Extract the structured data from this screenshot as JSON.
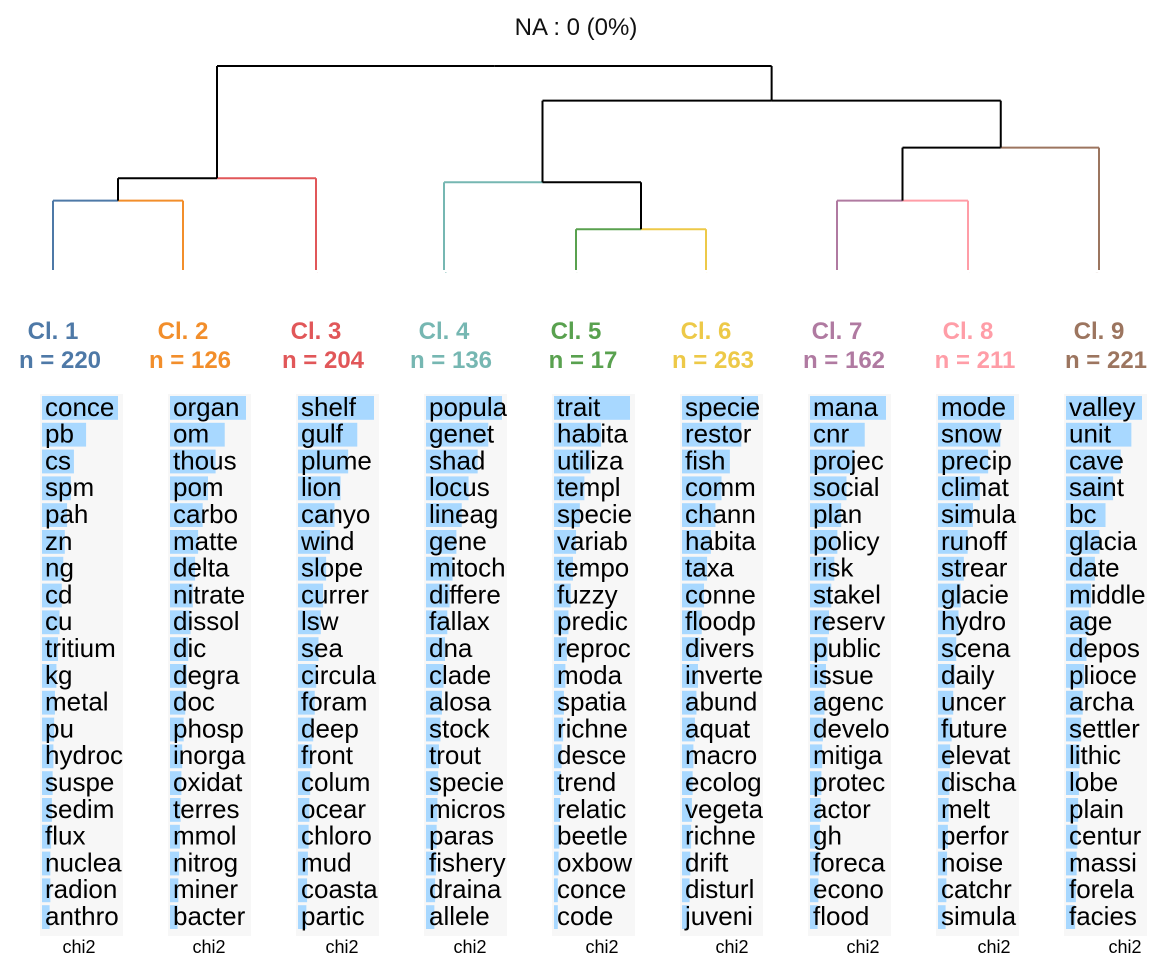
{
  "chart_data": {
    "type": "dendrogram",
    "title": "NA : 0 (0%)",
    "measure_label": "chi2",
    "branch_color": "#000000",
    "bar_color": "#a8d8ff",
    "panel_background": "#f7f7f7",
    "clusters": [
      {
        "label": "Cl. 1",
        "count_label": "n = 220",
        "leaf_label": "1",
        "color": "#4e79a7",
        "terms": [
          "concentration",
          "pb",
          "cs",
          "spm",
          "pah",
          "zn",
          "ng",
          "cd",
          "cu",
          "tritium",
          "kg",
          "metal",
          "pu",
          "hydrocarbon",
          "suspended",
          "sediment",
          "flux",
          "nuclear",
          "radionuclide",
          "anthropogenic"
        ],
        "term_display": [
          "conce",
          "pb",
          "cs",
          "spm",
          "pah",
          "zn",
          "ng",
          "cd",
          "cu",
          "tritium",
          "kg",
          "metal",
          "pu",
          "hydroc",
          "suspe",
          "sedim",
          "flux",
          "nuclea",
          "radion",
          "anthro"
        ],
        "scores": [
          1.0,
          0.58,
          0.42,
          0.38,
          0.33,
          0.3,
          0.28,
          0.26,
          0.23,
          0.21,
          0.19,
          0.17,
          0.16,
          0.15,
          0.14,
          0.13,
          0.12,
          0.11,
          0.11,
          0.1
        ]
      },
      {
        "label": "Cl. 2",
        "count_label": "n = 126",
        "leaf_label": "2",
        "color": "#f28e2b",
        "terms": [
          "organic",
          "om",
          "thousand",
          "pom",
          "carbon",
          "matter",
          "delta",
          "nitrate",
          "dissolved",
          "dic",
          "degradation",
          "doc",
          "phosphorus",
          "inorganic",
          "oxidation",
          "terrestrial",
          "mmol",
          "nitrogen",
          "mineral",
          "bacteria"
        ],
        "term_display": [
          "organ",
          "om",
          "thous",
          "pom",
          "carbo",
          "matte",
          "delta",
          "nitrate",
          "dissol",
          "dic",
          "degra",
          "doc",
          "phosp",
          "inorga",
          "oxidat",
          "terres",
          "mmol",
          "nitrog",
          "miner",
          "bacter"
        ],
        "scores": [
          1.0,
          0.72,
          0.6,
          0.5,
          0.43,
          0.37,
          0.33,
          0.3,
          0.27,
          0.24,
          0.22,
          0.2,
          0.18,
          0.16,
          0.15,
          0.14,
          0.13,
          0.12,
          0.11,
          0.1
        ]
      },
      {
        "label": "Cl. 3",
        "count_label": "n = 204",
        "leaf_label": "3",
        "color": "#e15759",
        "terms": [
          "shelf",
          "gulf",
          "plume",
          "lion",
          "canyon",
          "wind",
          "slope",
          "current",
          "lsw",
          "sea",
          "circulation",
          "foraminifera",
          "deep",
          "front",
          "column",
          "ocean",
          "chlorophyll",
          "mud",
          "coastal",
          "particle"
        ],
        "term_display": [
          "shelf",
          "gulf",
          "plume",
          "lion",
          "canyo",
          "wind",
          "slope",
          "currer",
          "lsw",
          "sea",
          "circula",
          "foram",
          "deep",
          "front",
          "colum",
          "ocear",
          "chloro",
          "mud",
          "coasta",
          "partic"
        ],
        "scores": [
          1.0,
          0.78,
          0.66,
          0.56,
          0.48,
          0.42,
          0.37,
          0.33,
          0.3,
          0.27,
          0.24,
          0.22,
          0.2,
          0.18,
          0.16,
          0.15,
          0.14,
          0.13,
          0.12,
          0.11
        ]
      },
      {
        "label": "Cl. 4",
        "count_label": "n = 136",
        "leaf_label": "4",
        "color": "#76b7b2",
        "terms": [
          "population",
          "genetic",
          "shad",
          "locus",
          "lineage",
          "gene",
          "mitochondrial",
          "differentiation",
          "fallax",
          "dna",
          "clade",
          "alosa",
          "stock",
          "trout",
          "species",
          "microsatellite",
          "parasite",
          "fishery",
          "drainage",
          "allele"
        ],
        "term_display": [
          "popula",
          "genet",
          "shad",
          "locus",
          "lineag",
          "gene",
          "mitoch",
          "differe",
          "fallax",
          "dna",
          "clade",
          "alosa",
          "stock",
          "trout",
          "specie",
          "micros",
          "paras",
          "fishery",
          "draina",
          "allele"
        ],
        "scores": [
          1.0,
          0.82,
          0.68,
          0.56,
          0.47,
          0.4,
          0.35,
          0.31,
          0.28,
          0.25,
          0.23,
          0.21,
          0.19,
          0.17,
          0.16,
          0.15,
          0.14,
          0.13,
          0.12,
          0.11
        ]
      },
      {
        "label": "Cl. 5",
        "count_label": "n = 17",
        "leaf_label": "5",
        "color": "#59a14f",
        "terms": [
          "trait",
          "habitat",
          "utilization",
          "template",
          "species",
          "variability",
          "temporal",
          "fuzzy",
          "prediction",
          "reproduction",
          "modality",
          "spatial",
          "richness",
          "descendant",
          "trend",
          "relationship",
          "beetle",
          "oxbow",
          "concept",
          "code"
        ],
        "term_display": [
          "trait",
          "habita",
          "utiliza",
          "templ",
          "specie",
          "variab",
          "tempo",
          "fuzzy",
          "predic",
          "reproc",
          "moda",
          "spatia",
          "richne",
          "desce",
          "trend",
          "relatic",
          "beetle",
          "oxbow",
          "conce",
          "code"
        ],
        "scores": [
          1.0,
          0.62,
          0.48,
          0.4,
          0.34,
          0.29,
          0.25,
          0.22,
          0.19,
          0.17,
          0.15,
          0.13,
          0.12,
          0.1,
          0.09,
          0.08,
          0.07,
          0.06,
          0.05,
          0.05
        ]
      },
      {
        "label": "Cl. 6",
        "count_label": "n = 263",
        "leaf_label": "6",
        "color": "#edc948",
        "terms": [
          "species",
          "restoration",
          "fish",
          "community",
          "channel",
          "habitat",
          "taxa",
          "connectivity",
          "floodplain",
          "diversity",
          "invertebrate",
          "abundance",
          "aquatic",
          "macroinvertebrate",
          "ecological",
          "vegetation",
          "richness",
          "drift",
          "disturbance",
          "juvenile"
        ],
        "term_display": [
          "specie",
          "restor",
          "fish",
          "comm",
          "chann",
          "habita",
          "taxa",
          "conne",
          "floodp",
          "divers",
          "inverte",
          "abund",
          "aquat",
          "macro",
          "ecolog",
          "vegeta",
          "richne",
          "drift",
          "disturl",
          "juveni"
        ],
        "scores": [
          1.0,
          0.78,
          0.63,
          0.52,
          0.44,
          0.38,
          0.33,
          0.29,
          0.26,
          0.23,
          0.21,
          0.19,
          0.17,
          0.15,
          0.14,
          0.13,
          0.12,
          0.11,
          0.1,
          0.09
        ]
      },
      {
        "label": "Cl. 7",
        "count_label": "n = 162",
        "leaf_label": "7",
        "color": "#b07aa1",
        "terms": [
          "management",
          "cnr",
          "project",
          "social",
          "plan",
          "policy",
          "risk",
          "stakeholder",
          "reservoir",
          "public",
          "issue",
          "agency",
          "development",
          "mitigation",
          "protection",
          "actor",
          "gh",
          "forecast",
          "economic",
          "flood"
        ],
        "term_display": [
          "mana",
          "cnr",
          "projec",
          "social",
          "plan",
          "policy",
          "risk",
          "stakel",
          "reserv",
          "public",
          "issue",
          "agenc",
          "develo",
          "mitiga",
          "protec",
          "actor",
          "gh",
          "foreca",
          "econo",
          "flood"
        ],
        "scores": [
          1.0,
          0.72,
          0.58,
          0.48,
          0.41,
          0.36,
          0.32,
          0.28,
          0.25,
          0.23,
          0.21,
          0.19,
          0.17,
          0.16,
          0.15,
          0.14,
          0.13,
          0.12,
          0.11,
          0.1
        ]
      },
      {
        "label": "Cl. 8",
        "count_label": "n = 211",
        "leaf_label": "8",
        "color": "#ff9da7",
        "terms": [
          "model",
          "snow",
          "precipitation",
          "climate",
          "simulation",
          "runoff",
          "stream",
          "glacier",
          "hydrological",
          "scenario",
          "daily",
          "uncertainty",
          "future",
          "elevation",
          "discharge",
          "melt",
          "performance",
          "noise",
          "catchment",
          "simulated"
        ],
        "term_display": [
          "mode",
          "snow",
          "precip",
          "climat",
          "simula",
          "runoff",
          "strear",
          "glacie",
          "hydro",
          "scena",
          "daily",
          "uncer",
          "future",
          "elevat",
          "discha",
          "melt",
          "perfor",
          "noise",
          "catchr",
          "simula"
        ],
        "scores": [
          1.0,
          0.82,
          0.66,
          0.55,
          0.46,
          0.39,
          0.34,
          0.3,
          0.27,
          0.24,
          0.22,
          0.2,
          0.18,
          0.16,
          0.15,
          0.14,
          0.13,
          0.12,
          0.11,
          0.1
        ]
      },
      {
        "label": "Cl. 9",
        "count_label": "n = 221",
        "leaf_label": "9",
        "color": "#9c755f",
        "terms": [
          "valley",
          "unit",
          "cave",
          "saint",
          "bc",
          "glacial",
          "date",
          "middle",
          "age",
          "deposit",
          "pliocene",
          "archaeological",
          "settlement",
          "lithic",
          "lobe",
          "plain",
          "century",
          "massif",
          "foreland",
          "facies"
        ],
        "term_display": [
          "valley",
          "unit",
          "cave",
          "saint",
          "bc",
          "glacia",
          "date",
          "middle",
          "age",
          "depos",
          "plioce",
          "archa",
          "settler",
          "lithic",
          "lobe",
          "plain",
          "centur",
          "massi",
          "forela",
          "facies"
        ],
        "scores": [
          1.0,
          0.86,
          0.72,
          0.62,
          0.52,
          0.44,
          0.38,
          0.33,
          0.3,
          0.27,
          0.24,
          0.22,
          0.2,
          0.18,
          0.17,
          0.16,
          0.15,
          0.14,
          0.13,
          0.12
        ]
      }
    ],
    "tree": {
      "children": [
        {
          "height": 0.45,
          "children": [
            {
              "height": 0.34,
              "children": [
                {
                  "leaf": 0
                },
                {
                  "leaf": 1
                }
              ]
            },
            {
              "leaf": 2
            }
          ]
        },
        {
          "height": 0.83,
          "children": [
            {
              "height": 0.43,
              "children": [
                {
                  "leaf": 3
                },
                {
                  "height": 0.2,
                  "children": [
                    {
                      "leaf": 4
                    },
                    {
                      "leaf": 5
                    }
                  ]
                }
              ]
            },
            {
              "height": 0.6,
              "children": [
                {
                  "height": 0.34,
                  "children": [
                    {
                      "leaf": 6
                    },
                    {
                      "leaf": 7
                    }
                  ]
                },
                {
                  "leaf": 8
                }
              ]
            }
          ]
        }
      ]
    }
  }
}
